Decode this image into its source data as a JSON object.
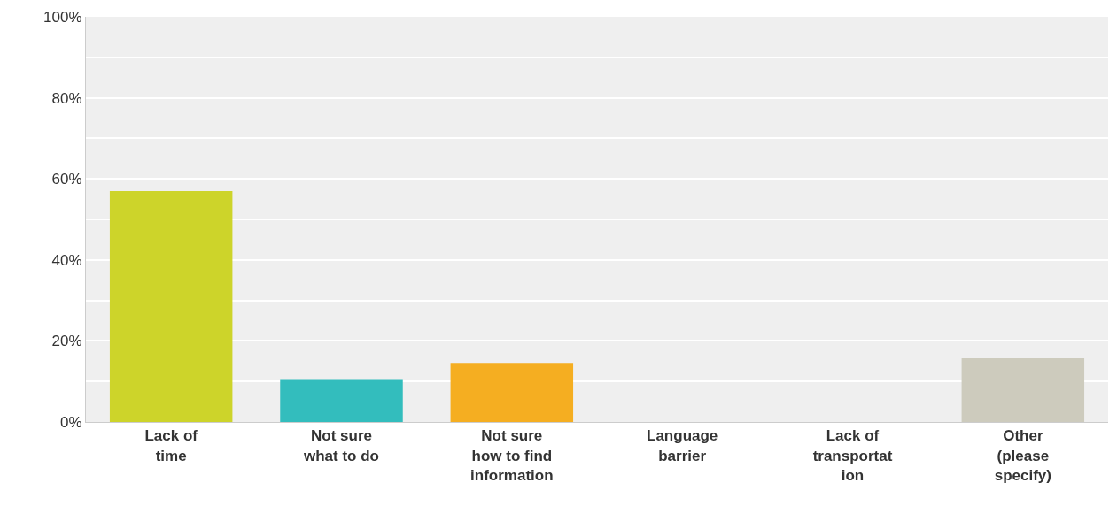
{
  "chart_data": {
    "type": "bar",
    "categories": [
      "Lack of\ntime",
      "Not sure\nwhat to do",
      "Not sure\nhow to find\ninformation",
      "Language\nbarrier",
      "Lack of\ntransportat\nion",
      "Other\n(please\nspecify)"
    ],
    "values": [
      57.0,
      10.6,
      14.6,
      0,
      0,
      15.7
    ],
    "colors": [
      "#cdd42a",
      "#33bdbd",
      "#f5ae21",
      "#9a9a9a",
      "#9a9a9a",
      "#cdcbbd"
    ],
    "ylim": [
      0,
      100
    ],
    "yticks": [
      {
        "value": 0,
        "label": "0%"
      },
      {
        "value": 10,
        "label": null
      },
      {
        "value": 20,
        "label": "20%"
      },
      {
        "value": 30,
        "label": null
      },
      {
        "value": 40,
        "label": "40%"
      },
      {
        "value": 50,
        "label": null
      },
      {
        "value": 60,
        "label": "60%"
      },
      {
        "value": 70,
        "label": null
      },
      {
        "value": 80,
        "label": "80%"
      },
      {
        "value": 90,
        "label": null
      },
      {
        "value": 100,
        "label": "100%"
      }
    ],
    "grid": "y",
    "legend": false
  }
}
